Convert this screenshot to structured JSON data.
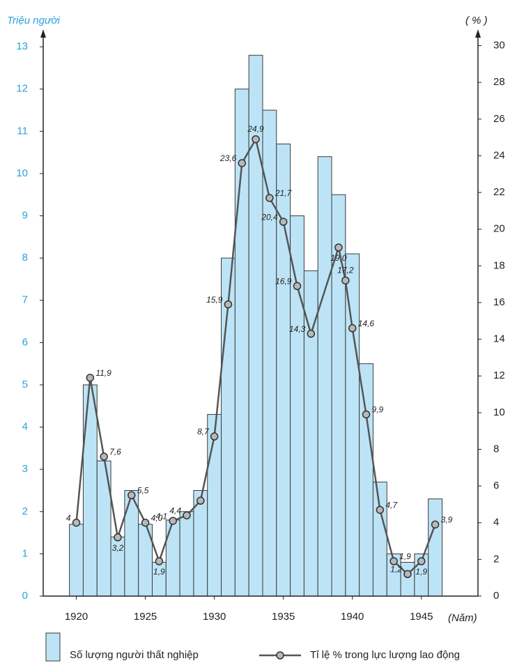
{
  "chart_data": {
    "type": "bar-line",
    "ylabel": "Triệu người",
    "y2label": "( % )",
    "xlabel": "(Năm)",
    "xlim": [
      1917.6,
      1949.1
    ],
    "xticks": [
      1920,
      1925,
      1930,
      1935,
      1940,
      1945
    ],
    "ylim": [
      0,
      13.2
    ],
    "yticks": [
      0,
      1,
      2,
      3,
      4,
      5,
      6,
      7,
      8,
      9,
      10,
      11,
      12,
      13
    ],
    "y2lim": [
      0,
      30.4
    ],
    "y2ticks": [
      0,
      2,
      4,
      6,
      8,
      10,
      12,
      14,
      16,
      18,
      20,
      22,
      24,
      26,
      28,
      30
    ],
    "series": [
      {
        "name": "Số lượng người thất nghiệp",
        "type": "bar",
        "color": "#bde4f6",
        "x": [
          1920,
          1921,
          1922,
          1923,
          1924,
          1925,
          1926,
          1927,
          1928,
          1929,
          1930,
          1931,
          1932,
          1933,
          1934,
          1935,
          1936,
          1937,
          1938,
          1939,
          1940,
          1941,
          1942,
          1943,
          1944,
          1945,
          1946
        ],
        "values": [
          1.7,
          5.0,
          3.2,
          1.4,
          2.5,
          1.7,
          0.8,
          1.8,
          2.0,
          2.5,
          4.3,
          8.0,
          12.0,
          12.8,
          11.5,
          10.7,
          9.0,
          7.7,
          10.4,
          9.5,
          8.1,
          5.5,
          2.7,
          1.0,
          0.8,
          1.0,
          2.3
        ]
      },
      {
        "name": "Tỉ lệ % trong lực lượng lao động",
        "type": "line",
        "axis": "y2",
        "color": "#555555",
        "x": [
          1920,
          1921,
          1922,
          1923,
          1924,
          1925,
          1926,
          1927,
          1928,
          1929,
          1930,
          1931,
          1932,
          1933,
          1934,
          1935,
          1936,
          1937,
          1939,
          1939.5,
          1940,
          1941,
          1942,
          1943,
          1944,
          1945,
          1946
        ],
        "values": [
          4,
          11.9,
          7.6,
          3.2,
          5.5,
          4.0,
          1.9,
          4.1,
          4.4,
          5.2,
          8.7,
          15.9,
          23.6,
          24.9,
          21.7,
          20.4,
          16.9,
          14.3,
          19.0,
          17.2,
          14.6,
          9.9,
          4.7,
          1.9,
          1.2,
          1.9,
          3.9
        ],
        "value_labels": [
          "4",
          "11,9",
          "7,6",
          "3,2",
          "5,5",
          "4,0",
          "1,9",
          "4,1",
          "4,4",
          null,
          "8,7",
          "15,9",
          "23,6",
          "24,9",
          "21,7",
          "20,4",
          "16,9",
          "14,3",
          "19,0",
          "17,2",
          "14,6",
          "9,9",
          "4,7",
          "1,9",
          "1,2",
          "1,9",
          "3,9"
        ]
      }
    ]
  }
}
